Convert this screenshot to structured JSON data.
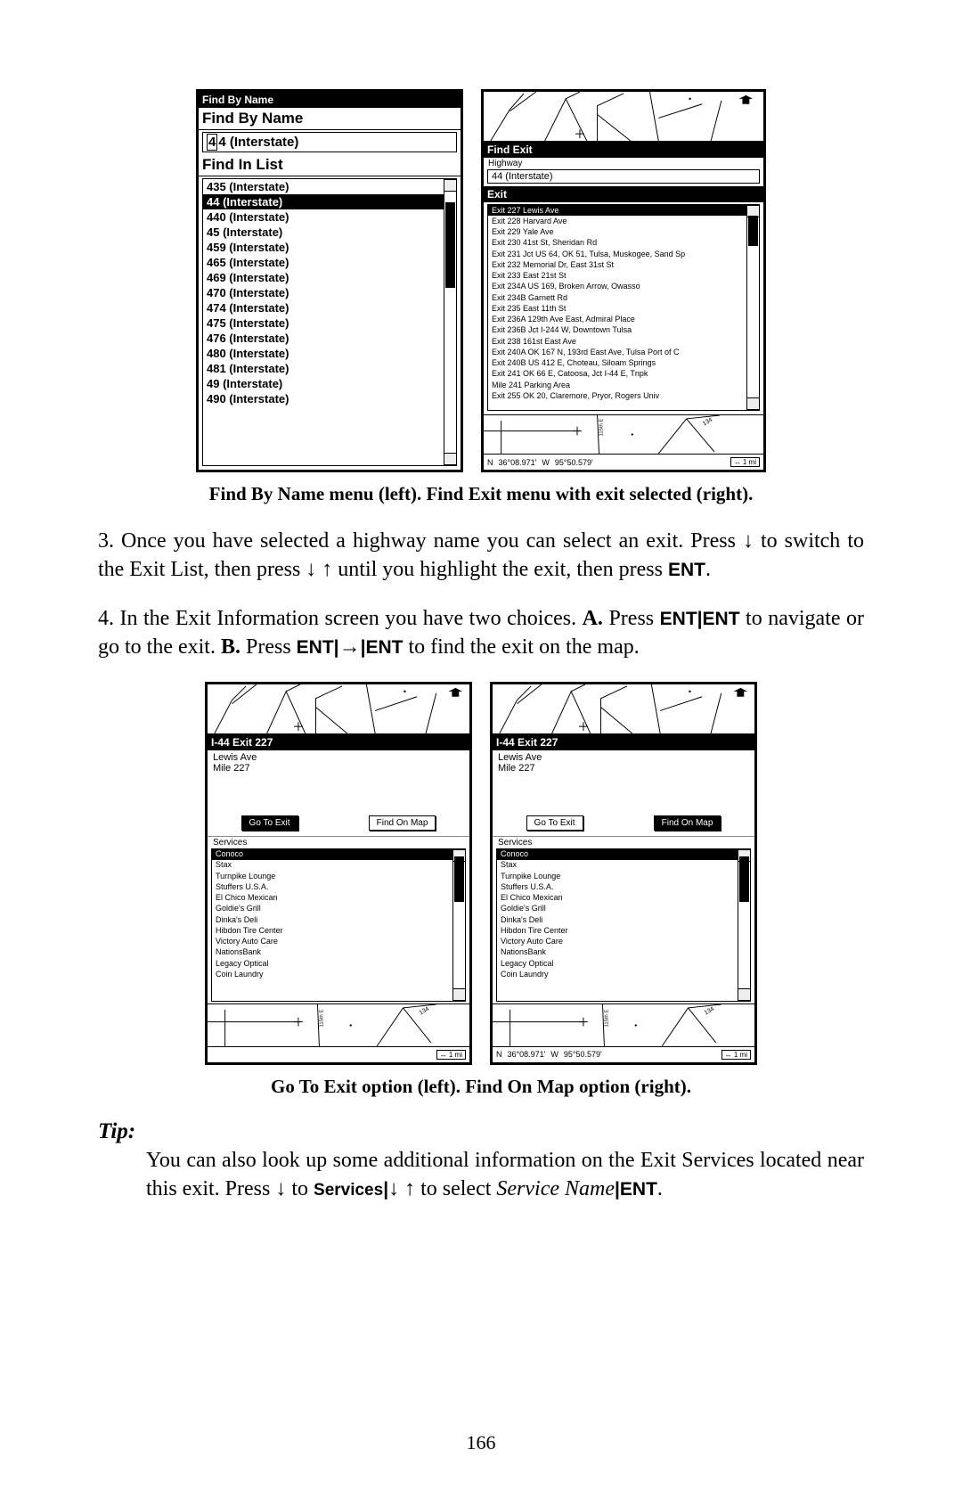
{
  "page_number": "166",
  "colors": {
    "black": "#000000",
    "white": "#ffffff",
    "grey": "#888888"
  },
  "screens1": {
    "left": {
      "title_black": "Find By Name",
      "title_white": "Find By Name",
      "field_value": "4 (Interstate)",
      "field_cursor": "4",
      "list_label": "Find In List",
      "items": [
        "435 (Interstate)",
        "44 (Interstate)",
        "440 (Interstate)",
        "45 (Interstate)",
        "459 (Interstate)",
        "465 (Interstate)",
        "469 (Interstate)",
        "470 (Interstate)",
        "474 (Interstate)",
        "475 (Interstate)",
        "476 (Interstate)",
        "480 (Interstate)",
        "481 (Interstate)",
        "49 (Interstate)",
        "490 (Interstate)"
      ],
      "selected_index": 1,
      "scroll": {
        "thumb_top_pct": 8,
        "thumb_height_pct": 30
      }
    },
    "right": {
      "title_black": "Find Exit",
      "section_highway": "Highway",
      "highway_value": "44 (Interstate)",
      "section_exit": "Exit",
      "exits": [
        "Exit 227 Lewis Ave",
        "Exit 228 Harvard Ave",
        "Exit 229 Yale Ave",
        "Exit 230 41st St, Sheridan Rd",
        "Exit 231 Jct US 64, OK 51, Tulsa, Muskogee, Sand Sp",
        "Exit 232 Memorial Dr, East 31st St",
        "Exit 233 East 21st St",
        "Exit 234A US 169, Broken Arrow, Owasso",
        "Exit 234B Garnett Rd",
        "Exit 235 East 11th St",
        "Exit 236A 129th Ave East, Admiral Place",
        "Exit 236B Jct I-244 W, Downtown Tulsa",
        "Exit 238 161st East Ave",
        "Exit 240A OK 167 N, 193rd East Ave, Tulsa Port of C",
        "Exit 240B US 412 E, Choteau, Siloam Springs",
        "Exit 241 OK 66 E, Catoosa, Jct I-44 E, Tnpk",
        "Mile 241 Parking Area",
        "Exit 255 OK 20, Claremore, Pryor, Rogers Univ"
      ],
      "selected_index": 0,
      "scroll": {
        "thumb_top_pct": 5,
        "thumb_height_pct": 15
      },
      "coords": {
        "lat_dir": "N",
        "lat": "36°08.971'",
        "lon_dir": "W",
        "lon": "95°50.579'",
        "scale": "1 mi"
      }
    }
  },
  "caption1": "Find By Name menu (left). Find Exit menu with exit selected (right).",
  "para3_prefix": "3. Once you have selected a highway name you can select an exit. Press ",
  "para3_mid1": " to switch to the Exit List, then press ",
  "para3_mid2": " until you highlight the exit, then press ",
  "ent": "ENT",
  "para4_prefix": "4. In the Exit Information screen you have two choices. ",
  "para4_A": "A.",
  "para4_A_after": " Press ",
  "para4_A_nav": " to navigate or go to the exit. ",
  "para4_B": "B.",
  "para4_B_after": " Press ",
  "para4_end": " to find the exit on the map.",
  "arrows": {
    "down": "↓",
    "up": "↑",
    "right": "→"
  },
  "screens2": {
    "title": "I-44 Exit 227",
    "info_lines": [
      "Lewis Ave",
      "Mile 227"
    ],
    "btn_left": "Go To Exit",
    "btn_right": "Find On Map",
    "services_label": "Services",
    "services": [
      "Conoco",
      "Stax",
      "Turnpike Lounge",
      "Stuffers U.S.A.",
      "El Chico Mexican",
      "Goldie's Grill",
      "Dinka's Deli",
      "Hibdon Tire Center",
      "Victory Auto Care",
      "NationsBank",
      "Legacy Optical",
      "Coin Laundry"
    ],
    "selected_service": 0,
    "scroll": {
      "thumb_top_pct": 5,
      "thumb_height_pct": 30
    },
    "coords": {
      "lat_dir": "N",
      "lat": "36°08.971'",
      "lon_dir": "W",
      "lon": "95°50.579'",
      "scale": "1 mi"
    }
  },
  "caption2": "Go To Exit option (left). Find On Map option (right).",
  "tip_label": "Tip:",
  "tip_line1": "You can also look up some additional information on the Exit Services located near this exit. Press ",
  "tip_services": "Services",
  "tip_to": " to ",
  "tip_sel": " to select ",
  "tip_service_name": "Service Name",
  "pipe": "|",
  "period": "."
}
